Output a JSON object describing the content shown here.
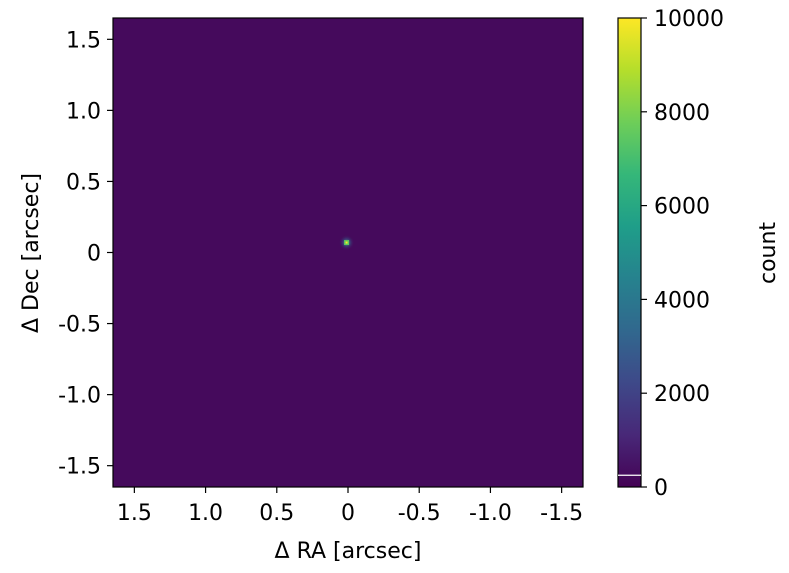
{
  "chart_data": {
    "type": "heatmap",
    "title": "",
    "xlabel": "Δ RA [arcsec]",
    "ylabel": "Δ Dec [arcsec]",
    "xlim": [
      1.65,
      -1.65
    ],
    "ylim": [
      -1.65,
      1.65
    ],
    "x_ticks": [
      1.5,
      1.0,
      0.5,
      0,
      -0.5,
      -1.0,
      -1.5
    ],
    "x_tick_labels": [
      "1.5",
      "1.0",
      "0.5",
      "0",
      "-0.5",
      "-1.0",
      "-1.5"
    ],
    "y_ticks": [
      1.5,
      1.0,
      0.5,
      0,
      -0.5,
      -1.0,
      -1.5
    ],
    "y_tick_labels": [
      "1.5",
      "1.0",
      "0.5",
      "0",
      "-0.5",
      "-1.0",
      "-1.5"
    ],
    "colormap": "viridis",
    "background_value": 250,
    "source": {
      "x": 0.01,
      "y": 0.07,
      "peak_count": 10000
    },
    "colorbar": {
      "label": "count",
      "vmin": 0,
      "vmax": 10000,
      "ticks": [
        0,
        2000,
        4000,
        6000,
        8000,
        10000
      ],
      "tick_labels": [
        "0",
        "2000",
        "4000",
        "6000",
        "8000",
        "10000"
      ]
    },
    "grid": false,
    "colors": {
      "background": "#440154",
      "viridis_stops": [
        "#440154",
        "#482878",
        "#3e4989",
        "#31688e",
        "#26828e",
        "#1f9e89",
        "#35b779",
        "#6ece58",
        "#b5de2b",
        "#fde725"
      ]
    }
  }
}
